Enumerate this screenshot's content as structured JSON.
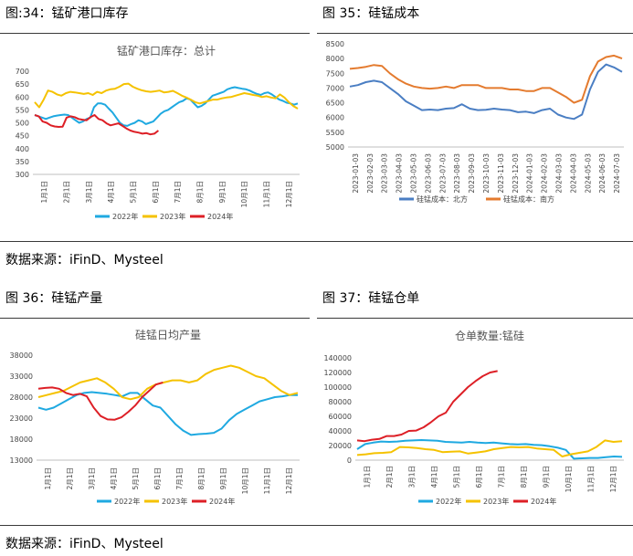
{
  "captions": {
    "fig34": "图:34：锰矿港口库存",
    "fig35": "图 35：硅锰成本",
    "fig36": "图 36：硅锰产量",
    "fig37": "图 37：硅锰仓单"
  },
  "sources": {
    "top": "数据来源：iFinD、Mysteel",
    "bottom": "数据来源：iFinD、Mysteel"
  },
  "colors": {
    "blue": "#1fa9e1",
    "yellow": "#f5c200",
    "red": "#dd1f26",
    "north": "#4a7ec3",
    "south": "#e47b2f"
  },
  "chart_data": [
    {
      "id": "manganese-port-inventory",
      "type": "line",
      "title": "锰矿港口库存：总计",
      "xlabel": "",
      "ylabel": "",
      "ylim": [
        300,
        700
      ],
      "yticks": [
        300,
        350,
        400,
        450,
        500,
        550,
        600,
        650,
        700
      ],
      "xticklabels": [
        "1月1日",
        "2月1日",
        "3月1日",
        "4月1日",
        "5月1日",
        "6月1日",
        "7月1日",
        "8月1日",
        "9月1日",
        "10月1日",
        "11月1日",
        "12月1日"
      ],
      "grid": false,
      "legend": "bottom",
      "series": [
        {
          "name": "2022年",
          "color": "blue",
          "values": [
            530,
            525,
            520,
            515,
            520,
            525,
            528,
            530,
            532,
            530,
            520,
            510,
            500,
            505,
            515,
            520,
            560,
            575,
            575,
            570,
            555,
            540,
            520,
            500,
            490,
            488,
            495,
            500,
            510,
            505,
            495,
            500,
            505,
            520,
            535,
            545,
            550,
            560,
            570,
            580,
            585,
            595,
            590,
            575,
            560,
            565,
            575,
            590,
            605,
            610,
            615,
            620,
            630,
            635,
            638,
            635,
            632,
            630,
            625,
            618,
            612,
            608,
            615,
            618,
            610,
            600,
            590,
            585,
            578,
            575,
            570,
            575
          ]
        },
        {
          "name": "2023年",
          "color": "yellow",
          "values": [
            580,
            560,
            590,
            625,
            620,
            610,
            605,
            615,
            620,
            618,
            615,
            612,
            615,
            608,
            620,
            615,
            625,
            630,
            632,
            640,
            650,
            652,
            640,
            632,
            626,
            622,
            620,
            622,
            625,
            618,
            620,
            624,
            615,
            605,
            598,
            590,
            580,
            575,
            580,
            585,
            590,
            590,
            595,
            598,
            600,
            605,
            610,
            615,
            612,
            608,
            605,
            600,
            603,
            598,
            595,
            610,
            598,
            580,
            565,
            555
          ]
        },
        {
          "name": "2024年",
          "color": "red",
          "values": [
            530,
            525,
            505,
            500,
            490,
            486,
            484,
            485,
            520,
            525,
            522,
            515,
            512,
            510,
            522,
            530,
            515,
            510,
            498,
            490,
            494,
            498,
            488,
            478,
            470,
            465,
            462,
            458,
            460,
            455,
            458,
            470
          ]
        }
      ]
    },
    {
      "id": "silicomanganese-cost",
      "type": "line",
      "title": "",
      "xlabel": "",
      "ylabel": "",
      "ylim": [
        5000,
        8500
      ],
      "yticks": [
        5000,
        5500,
        6000,
        6500,
        7000,
        7500,
        8000,
        8500
      ],
      "xticklabels": [
        "2023-01-03",
        "2023-02-03",
        "2023-03-03",
        "2023-04-03",
        "2023-05-03",
        "2023-06-03",
        "2023-07-03",
        "2023-08-03",
        "2023-09-03",
        "2023-10-03",
        "2023-11-03",
        "2023-12-03",
        "2024-01-03",
        "2024-02-03",
        "2024-03-03",
        "2024-04-03",
        "2024-05-03",
        "2024-06-03",
        "2024-07-03"
      ],
      "grid": false,
      "legend": "bottom",
      "series": [
        {
          "name": "硅锰成本：北方",
          "color": "north",
          "values": [
            7050,
            7100,
            7200,
            7250,
            7200,
            7000,
            6800,
            6550,
            6400,
            6250,
            6270,
            6250,
            6300,
            6320,
            6450,
            6300,
            6250,
            6260,
            6300,
            6270,
            6250,
            6180,
            6200,
            6150,
            6250,
            6300,
            6100,
            6000,
            5950,
            6100,
            6950,
            7550,
            7800,
            7700,
            7550
          ]
        },
        {
          "name": "硅锰成本：南方",
          "color": "south",
          "values": [
            7650,
            7680,
            7720,
            7780,
            7750,
            7500,
            7300,
            7150,
            7050,
            7000,
            6980,
            7000,
            7050,
            7000,
            7100,
            7100,
            7100,
            7000,
            7000,
            7000,
            6950,
            6950,
            6900,
            6900,
            7000,
            7000,
            6850,
            6700,
            6500,
            6600,
            7400,
            7900,
            8050,
            8100,
            8000
          ]
        }
      ]
    },
    {
      "id": "silicomanganese-daily-output",
      "type": "line",
      "title": "硅锰日均产量",
      "xlabel": "",
      "ylabel": "",
      "ylim": [
        13000,
        38000
      ],
      "yticks": [
        13000,
        18000,
        23000,
        28000,
        33000,
        38000
      ],
      "xticklabels": [
        "1月1日",
        "2月1日",
        "3月1日",
        "4月1日",
        "5月1日",
        "6月1日",
        "7月1日",
        "8月1日",
        "9月1日",
        "10月1日",
        "11月1日",
        "12月1日"
      ],
      "grid": false,
      "legend": "bottom",
      "series": [
        {
          "name": "2022年",
          "color": "blue",
          "values": [
            25500,
            25000,
            25500,
            26500,
            27500,
            28500,
            29000,
            29200,
            29000,
            28800,
            28500,
            28200,
            29000,
            29000,
            27500,
            26000,
            25500,
            23500,
            21500,
            20000,
            19000,
            19200,
            19300,
            19500,
            20500,
            22500,
            24000,
            25000,
            26000,
            27000,
            27500,
            28000,
            28200,
            28500,
            28500
          ]
        },
        {
          "name": "2023年",
          "color": "yellow",
          "values": [
            28000,
            28500,
            29000,
            29500,
            30500,
            31500,
            32000,
            32500,
            31500,
            30000,
            28000,
            27500,
            28000,
            30000,
            31000,
            31500,
            32000,
            32000,
            31500,
            32000,
            33500,
            34500,
            35000,
            35500,
            35000,
            34000,
            33000,
            32500,
            31000,
            29500,
            28500,
            29000
          ]
        },
        {
          "name": "2024年",
          "color": "red",
          "values": [
            30000,
            30200,
            30300,
            30000,
            29000,
            28500,
            28800,
            28200,
            25500,
            23500,
            22700,
            22600,
            23200,
            24500,
            26000,
            28000,
            29500,
            31000,
            31500
          ]
        }
      ]
    },
    {
      "id": "silicomanganese-warehouse-receipts",
      "type": "line",
      "title": "仓单数量:锰硅",
      "xlabel": "",
      "ylabel": "",
      "ylim": [
        0,
        140000
      ],
      "yticks": [
        0,
        20000,
        40000,
        60000,
        80000,
        100000,
        120000,
        140000
      ],
      "xticklabels": [
        "1月1日",
        "2月1日",
        "3月1日",
        "4月1日",
        "5月1日",
        "6月1日",
        "7月1日",
        "8月1日",
        "9月1日",
        "10月1日",
        "11月1日",
        "12月1日"
      ],
      "grid": false,
      "legend": "bottom",
      "series": [
        {
          "name": "2022年",
          "color": "blue",
          "values": [
            15000,
            22000,
            24000,
            25500,
            25000,
            25500,
            26500,
            27000,
            27500,
            27000,
            26500,
            25000,
            24500,
            24000,
            25000,
            24000,
            23500,
            24000,
            23000,
            22000,
            21500,
            22000,
            21000,
            20500,
            19000,
            17000,
            14000,
            2000,
            2500,
            3000,
            3000,
            4000,
            5000,
            4500
          ]
        },
        {
          "name": "2023年",
          "color": "yellow",
          "values": [
            7000,
            8000,
            9500,
            10000,
            11000,
            18000,
            17500,
            16500,
            15000,
            14000,
            11000,
            11500,
            12000,
            9000,
            10500,
            12000,
            15000,
            16500,
            18000,
            17500,
            18000,
            16000,
            15000,
            14000,
            5000,
            8000,
            10000,
            12000,
            18000,
            27000,
            25000,
            26000
          ]
        },
        {
          "name": "2024年",
          "color": "red",
          "values": [
            27000,
            26000,
            28000,
            29000,
            33000,
            33000,
            35000,
            40000,
            40500,
            45000,
            52000,
            60000,
            65000,
            80000,
            90000,
            100000,
            108000,
            115000,
            120000,
            122000
          ]
        }
      ]
    }
  ]
}
